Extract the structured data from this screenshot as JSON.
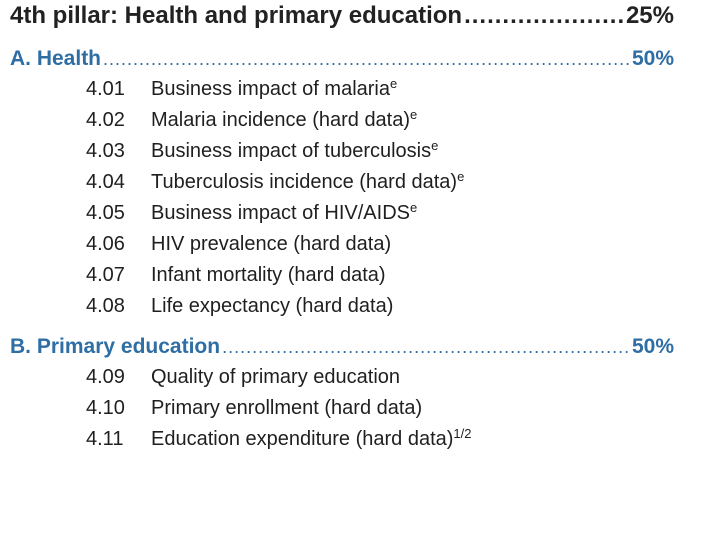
{
  "pillar": {
    "title": "4th pillar: Health and primary education",
    "dots": "..................................................",
    "weight": "25%"
  },
  "sections": [
    {
      "title": "A. Health",
      "dots": "...............................................................................................................................",
      "weight": "50%",
      "items": [
        {
          "code": "4.01",
          "label": "Business impact of malaria",
          "note": "e"
        },
        {
          "code": "4.02",
          "label": "Malaria incidence (hard data)",
          "note": "e"
        },
        {
          "code": "4.03",
          "label": "Business impact of tuberculosis",
          "note": "e"
        },
        {
          "code": "4.04",
          "label": "Tuberculosis incidence (hard data)",
          "note": "e"
        },
        {
          "code": "4.05",
          "label": "Business impact of HIV/AIDS",
          "note": "e"
        },
        {
          "code": "4.06",
          "label": "HIV prevalence (hard data)",
          "note": ""
        },
        {
          "code": "4.07",
          "label": "Infant mortality (hard data)",
          "note": ""
        },
        {
          "code": "4.08",
          "label": "Life expectancy (hard data)",
          "note": ""
        }
      ]
    },
    {
      "title": "B. Primary education",
      "dots": "...............................................................................................................................",
      "weight": "50%",
      "items": [
        {
          "code": "4.09",
          "label": "Quality of primary education",
          "note": ""
        },
        {
          "code": "4.10",
          "label": "Primary enrollment (hard data)",
          "note": ""
        },
        {
          "code": "4.11",
          "label": "Education expenditure (hard data)",
          "note": "1/2"
        }
      ]
    }
  ],
  "colors": {
    "heading": "#222222",
    "section": "#2f6ea5",
    "text": "#1f1f1f"
  }
}
